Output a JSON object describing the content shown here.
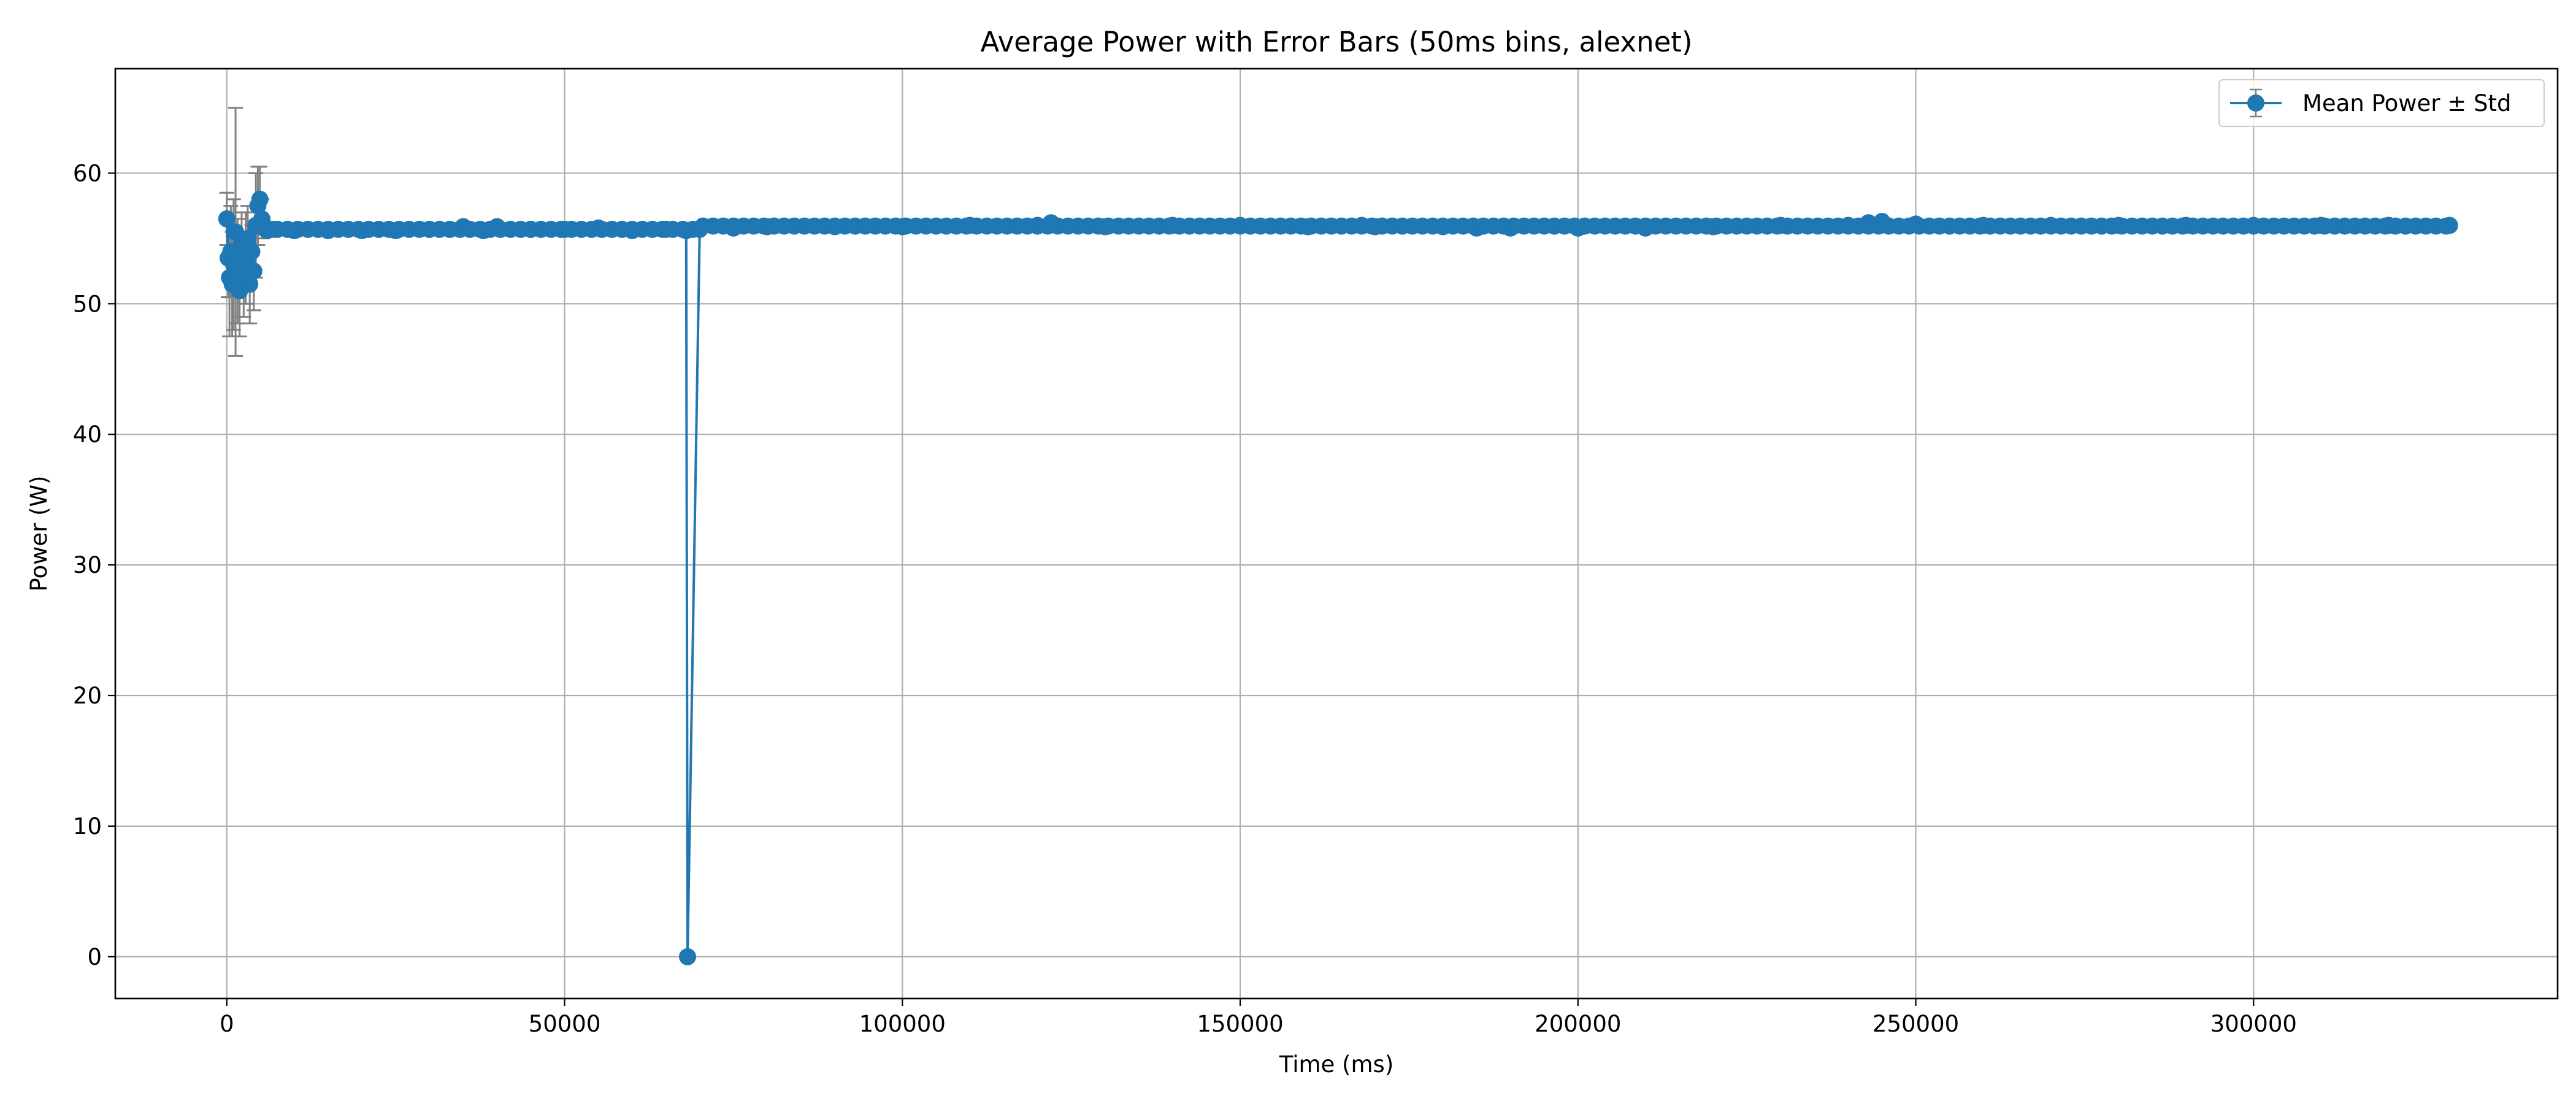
{
  "chart_data": {
    "type": "line",
    "title": "Average Power with Error Bars (50ms bins, alexnet)",
    "xlabel": "Time (ms)",
    "ylabel": "Power (W)",
    "xlim": [
      -16500,
      345000
    ],
    "ylim": [
      -3.2,
      68
    ],
    "xticks": [
      0,
      50000,
      100000,
      150000,
      200000,
      250000,
      300000
    ],
    "yticks": [
      0,
      10,
      20,
      30,
      40,
      50,
      60
    ],
    "grid": true,
    "legend": {
      "position": "top-right",
      "entries": [
        "Mean Power ± Std"
      ]
    },
    "colors": {
      "series": "#1f77b4",
      "error_bars": "#808080"
    },
    "series": [
      {
        "name": "Mean Power ± Std",
        "x": [
          0,
          200,
          400,
          600,
          800,
          1000,
          1300,
          1600,
          1900,
          2200,
          2500,
          2800,
          3100,
          3400,
          3700,
          4000,
          4300,
          4600,
          4900,
          5200,
          5500,
          6000,
          7000,
          10000,
          15000,
          20000,
          25000,
          30000,
          35000,
          38000,
          40000,
          45000,
          50000,
          55000,
          60000,
          65000,
          68000,
          68200,
          70000,
          75000,
          80000,
          90000,
          100000,
          110000,
          120000,
          122000,
          130000,
          140000,
          150000,
          160000,
          168000,
          170000,
          180000,
          185000,
          190000,
          200000,
          210000,
          220000,
          230000,
          240000,
          243000,
          245000,
          250000,
          260000,
          270000,
          280000,
          290000,
          300000,
          310000,
          320000,
          329000
        ],
        "y": [
          56.5,
          53.5,
          52.0,
          54.0,
          51.5,
          53.0,
          55.5,
          52.5,
          51.0,
          54.5,
          52.0,
          53.5,
          55.0,
          51.5,
          54.0,
          52.5,
          56.0,
          57.5,
          58.0,
          56.5,
          55.8,
          55.6,
          55.7,
          55.6,
          55.6,
          55.6,
          55.6,
          55.7,
          55.9,
          55.6,
          55.9,
          55.7,
          55.7,
          55.8,
          55.6,
          55.7,
          55.6,
          0,
          55.7,
          55.8,
          55.9,
          55.9,
          55.9,
          56.0,
          56.0,
          56.2,
          55.9,
          56.0,
          56.0,
          55.9,
          56.0,
          55.9,
          55.9,
          55.8,
          55.8,
          55.8,
          55.8,
          55.9,
          56.0,
          56.0,
          56.2,
          56.3,
          56.1,
          56.0,
          56.0,
          56.0,
          56.0,
          56.0,
          56.0,
          56.0,
          56.0
        ],
        "yerr": [
          2.0,
          3.0,
          4.5,
          3.5,
          4.0,
          5.0,
          9.5,
          4.0,
          3.5,
          2.5,
          3.0,
          3.5,
          2.5,
          3.0,
          2.0,
          3.0,
          4.0,
          3.0,
          2.5,
          1.5,
          0.5,
          0.2,
          0.2,
          0.2,
          0.2,
          0.2,
          0.2,
          0.2,
          0.2,
          0.2,
          0.2,
          0.2,
          0.2,
          0.2,
          0.2,
          0.2,
          0.2,
          0,
          0.2,
          0.2,
          0.2,
          0.2,
          0.2,
          0.2,
          0.2,
          0.2,
          0.2,
          0.2,
          0.2,
          0.2,
          0.2,
          0.2,
          0.2,
          0.2,
          0.2,
          0.2,
          0.2,
          0.2,
          0.2,
          0.2,
          0.2,
          0.2,
          0.2,
          0.2,
          0.2,
          0.2,
          0.2,
          0.2,
          0.2,
          0.2,
          0.2
        ]
      }
    ]
  }
}
